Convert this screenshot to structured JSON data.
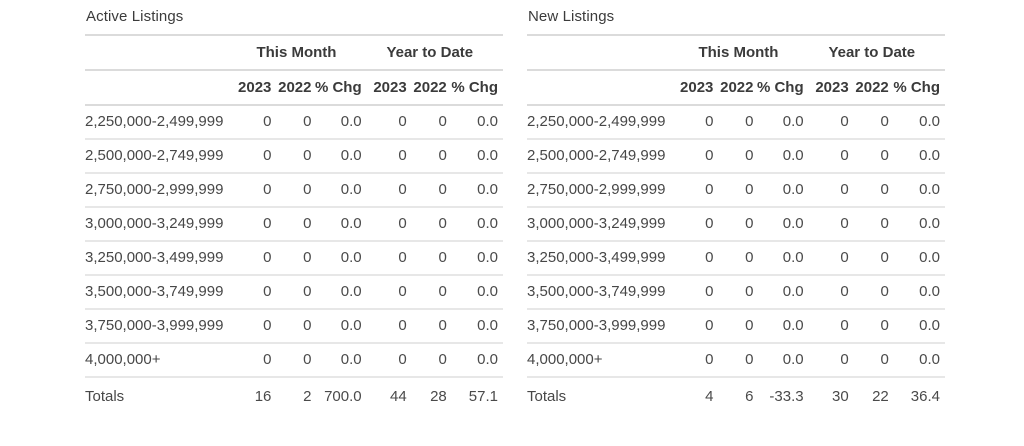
{
  "colors": {
    "heading_text": "#3b3b3b",
    "body_text": "#4a4a4a",
    "header_divider": "#dbdbdb",
    "row_divider": "#e7e7e7",
    "background": "#ffffff"
  },
  "tables": [
    {
      "title": "Active Listings",
      "group_headers": [
        "This Month",
        "Year to Date"
      ],
      "column_headers": [
        "2023",
        "2022",
        "% Chg",
        "2023",
        "2022",
        "% Chg"
      ],
      "rows": [
        {
          "label": "2,250,000-2,499,999",
          "values": [
            "0",
            "0",
            "0.0",
            "0",
            "0",
            "0.0"
          ]
        },
        {
          "label": "2,500,000-2,749,999",
          "values": [
            "0",
            "0",
            "0.0",
            "0",
            "0",
            "0.0"
          ]
        },
        {
          "label": "2,750,000-2,999,999",
          "values": [
            "0",
            "0",
            "0.0",
            "0",
            "0",
            "0.0"
          ]
        },
        {
          "label": "3,000,000-3,249,999",
          "values": [
            "0",
            "0",
            "0.0",
            "0",
            "0",
            "0.0"
          ]
        },
        {
          "label": "3,250,000-3,499,999",
          "values": [
            "0",
            "0",
            "0.0",
            "0",
            "0",
            "0.0"
          ]
        },
        {
          "label": "3,500,000-3,749,999",
          "values": [
            "0",
            "0",
            "0.0",
            "0",
            "0",
            "0.0"
          ]
        },
        {
          "label": "3,750,000-3,999,999",
          "values": [
            "0",
            "0",
            "0.0",
            "0",
            "0",
            "0.0"
          ]
        },
        {
          "label": "4,000,000+",
          "values": [
            "0",
            "0",
            "0.0",
            "0",
            "0",
            "0.0"
          ]
        }
      ],
      "totals": {
        "label": "Totals",
        "values": [
          "16",
          "2",
          "700.0",
          "44",
          "28",
          "57.1"
        ]
      }
    },
    {
      "title": "New Listings",
      "group_headers": [
        "This Month",
        "Year to Date"
      ],
      "column_headers": [
        "2023",
        "2022",
        "% Chg",
        "2023",
        "2022",
        "% Chg"
      ],
      "rows": [
        {
          "label": "2,250,000-2,499,999",
          "values": [
            "0",
            "0",
            "0.0",
            "0",
            "0",
            "0.0"
          ]
        },
        {
          "label": "2,500,000-2,749,999",
          "values": [
            "0",
            "0",
            "0.0",
            "0",
            "0",
            "0.0"
          ]
        },
        {
          "label": "2,750,000-2,999,999",
          "values": [
            "0",
            "0",
            "0.0",
            "0",
            "0",
            "0.0"
          ]
        },
        {
          "label": "3,000,000-3,249,999",
          "values": [
            "0",
            "0",
            "0.0",
            "0",
            "0",
            "0.0"
          ]
        },
        {
          "label": "3,250,000-3,499,999",
          "values": [
            "0",
            "0",
            "0.0",
            "0",
            "0",
            "0.0"
          ]
        },
        {
          "label": "3,500,000-3,749,999",
          "values": [
            "0",
            "0",
            "0.0",
            "0",
            "0",
            "0.0"
          ]
        },
        {
          "label": "3,750,000-3,999,999",
          "values": [
            "0",
            "0",
            "0.0",
            "0",
            "0",
            "0.0"
          ]
        },
        {
          "label": "4,000,000+",
          "values": [
            "0",
            "0",
            "0.0",
            "0",
            "0",
            "0.0"
          ]
        }
      ],
      "totals": {
        "label": "Totals",
        "values": [
          "4",
          "6",
          "-33.3",
          "30",
          "22",
          "36.4"
        ]
      }
    }
  ]
}
